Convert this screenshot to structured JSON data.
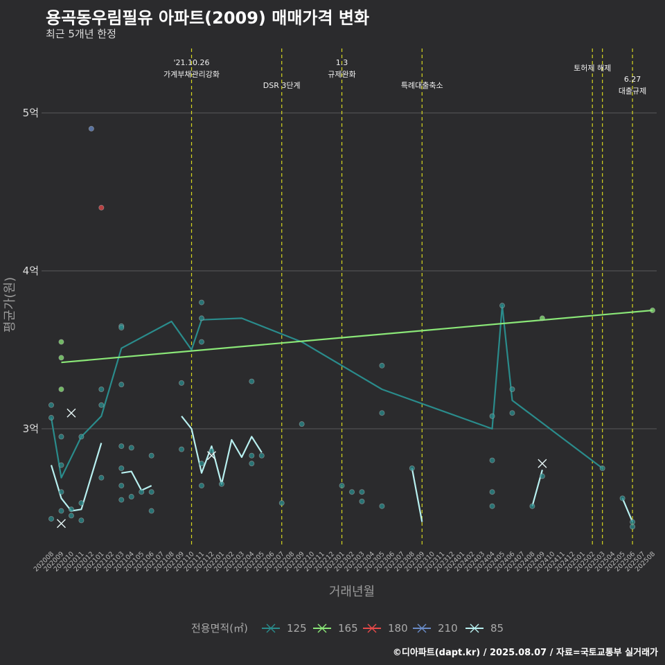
{
  "title": "용곡동우림필유 아파트(2009) 매매가격 변화",
  "subtitle": "최근 5개년 한정",
  "caption": "©디아파트(dapt.kr) / 2025.08.07 / 자료=국토교통부 실거래가",
  "chart_data": {
    "type": "scatter",
    "xlabel": "거래년월",
    "ylabel": "평균가(원)",
    "x_categories": [
      "202008",
      "202009",
      "202010",
      "202011",
      "202012",
      "202101",
      "202102",
      "202103",
      "202104",
      "202105",
      "202106",
      "202107",
      "202108",
      "202109",
      "202110",
      "202111",
      "202112",
      "202201",
      "202202",
      "202203",
      "202204",
      "202205",
      "202206",
      "202207",
      "202208",
      "202209",
      "202210",
      "202211",
      "202212",
      "202301",
      "202302",
      "202303",
      "202304",
      "202305",
      "202306",
      "202307",
      "202308",
      "202309",
      "202310",
      "202311",
      "202312",
      "202401",
      "202402",
      "202403",
      "202404",
      "202405",
      "202406",
      "202407",
      "202408",
      "202409",
      "202410",
      "202411",
      "202412",
      "202501",
      "202502",
      "202503",
      "202504",
      "202505",
      "202506",
      "202507",
      "202508"
    ],
    "y_ticks": [
      {
        "value": 3.0,
        "label": "3억"
      },
      {
        "value": 4.0,
        "label": "4억"
      },
      {
        "value": 5.0,
        "label": "5억"
      }
    ],
    "y_unit": "억원",
    "ylim": [
      2.3,
      5.5
    ],
    "grid": true,
    "legend_title": "전용면적(㎡)",
    "legend_position": "bottom",
    "series": [
      {
        "name": "125",
        "color": "#2a8c8c",
        "points": [
          [
            "202008",
            3.15
          ],
          [
            "202008",
            3.07
          ],
          [
            "202008",
            2.43
          ],
          [
            "202009",
            2.95
          ],
          [
            "202009",
            2.77
          ],
          [
            "202009",
            2.6
          ],
          [
            "202009",
            2.48
          ],
          [
            "202010",
            2.45
          ],
          [
            "202010",
            2.49
          ],
          [
            "202011",
            2.95
          ],
          [
            "202011",
            2.53
          ],
          [
            "202011",
            2.42
          ],
          [
            "202101",
            3.25
          ],
          [
            "202101",
            3.15
          ],
          [
            "202101",
            2.69
          ],
          [
            "202103",
            3.65
          ],
          [
            "202103",
            3.64
          ],
          [
            "202103",
            3.28
          ],
          [
            "202103",
            2.89
          ],
          [
            "202103",
            2.75
          ],
          [
            "202103",
            2.64
          ],
          [
            "202103",
            2.55
          ],
          [
            "202104",
            2.88
          ],
          [
            "202104",
            2.57
          ],
          [
            "202105",
            2.6
          ],
          [
            "202106",
            2.83
          ],
          [
            "202106",
            2.6
          ],
          [
            "202106",
            2.48
          ],
          [
            "202109",
            3.29
          ],
          [
            "202109",
            2.87
          ],
          [
            "202111",
            3.8
          ],
          [
            "202111",
            3.7
          ],
          [
            "202111",
            3.55
          ],
          [
            "202111",
            2.78
          ],
          [
            "202111",
            2.64
          ],
          [
            "202112",
            2.86
          ],
          [
            "202201",
            2.65
          ],
          [
            "202204",
            3.3
          ],
          [
            "202204",
            2.83
          ],
          [
            "202204",
            2.78
          ],
          [
            "202205",
            2.83
          ],
          [
            "202207",
            2.53
          ],
          [
            "202209",
            3.03
          ],
          [
            "202301",
            2.64
          ],
          [
            "202302",
            2.6
          ],
          [
            "202303",
            2.6
          ],
          [
            "202303",
            2.54
          ],
          [
            "202305",
            3.4
          ],
          [
            "202305",
            3.1
          ],
          [
            "202305",
            2.51
          ],
          [
            "202308",
            2.75
          ],
          [
            "202404",
            3.08
          ],
          [
            "202404",
            2.8
          ],
          [
            "202404",
            2.6
          ],
          [
            "202404",
            2.51
          ],
          [
            "202405",
            3.78
          ],
          [
            "202406",
            3.25
          ],
          [
            "202406",
            3.1
          ],
          [
            "202408",
            2.51
          ],
          [
            "202409",
            2.7
          ],
          [
            "202503",
            2.75
          ],
          [
            "202505",
            2.56
          ],
          [
            "202506",
            2.41
          ],
          [
            "202506",
            2.38
          ]
        ],
        "trend": [
          [
            "202008",
            3.07
          ],
          [
            "202009",
            2.69
          ],
          [
            "202011",
            2.95
          ],
          [
            "202101",
            3.08
          ],
          [
            "202103",
            3.51
          ],
          [
            "202108",
            3.68
          ],
          [
            "202110",
            3.5
          ],
          [
            "202111",
            3.69
          ],
          [
            "202203",
            3.7
          ],
          [
            "202209",
            3.55
          ],
          [
            "202305",
            3.25
          ],
          [
            "202404",
            3.0
          ],
          [
            "202405",
            3.78
          ],
          [
            "202406",
            3.18
          ],
          [
            "202503",
            2.75
          ]
        ]
      },
      {
        "name": "165",
        "color": "#8be878",
        "points": [
          [
            "202009",
            3.55
          ],
          [
            "202009",
            3.45
          ],
          [
            "202009",
            3.25
          ],
          [
            "202409",
            3.7
          ],
          [
            "202508",
            3.75
          ]
        ],
        "trend": [
          [
            "202009",
            3.42
          ],
          [
            "202508",
            3.75
          ]
        ]
      },
      {
        "name": "180",
        "color": "#e84a4a",
        "points": [
          [
            "202101",
            4.4
          ]
        ]
      },
      {
        "name": "210",
        "color": "#6a8cc8",
        "points": [
          [
            "202012",
            4.9
          ]
        ]
      },
      {
        "name": "85",
        "color": "#b8f0f0",
        "points": [
          [
            "202009",
            2.4
          ],
          [
            "202010",
            3.1
          ],
          [
            "202112",
            2.83
          ],
          [
            "202409",
            2.78
          ]
        ],
        "trend_segments": [
          [
            [
              "202008",
              2.77
            ],
            [
              "202009",
              2.56
            ],
            [
              "202010",
              2.48
            ],
            [
              "202011",
              2.49
            ],
            [
              "202101",
              2.91
            ]
          ],
          [
            [
              "202103",
              2.72
            ],
            [
              "202104",
              2.73
            ],
            [
              "202105",
              2.61
            ],
            [
              "202106",
              2.64
            ]
          ],
          [
            [
              "202109",
              3.08
            ],
            [
              "202110",
              3.0
            ],
            [
              "202111",
              2.72
            ],
            [
              "202112",
              2.89
            ],
            [
              "202201",
              2.65
            ],
            [
              "202202",
              2.93
            ],
            [
              "202203",
              2.82
            ],
            [
              "202204",
              2.95
            ],
            [
              "202205",
              2.85
            ]
          ],
          [
            [
              "202308",
              2.75
            ],
            [
              "202309",
              2.41
            ]
          ],
          [
            [
              "202408",
              2.51
            ],
            [
              "202409",
              2.74
            ]
          ],
          [
            [
              "202505",
              2.56
            ],
            [
              "202506",
              2.41
            ]
          ]
        ]
      }
    ],
    "annotations": [
      {
        "x": "202110",
        "lines": [
          "'21.10.26",
          "가계부채관리강화"
        ]
      },
      {
        "x": "202207",
        "lines": [
          "DSR 3단계"
        ]
      },
      {
        "x": "202301",
        "lines": [
          "1.3",
          "규제완화"
        ]
      },
      {
        "x": "202309",
        "lines": [
          "특례대출축소"
        ]
      },
      {
        "x": "202502",
        "lines": [
          "토허제 해제"
        ]
      },
      {
        "x": "202503",
        "lines": []
      },
      {
        "x": "202506",
        "lines": [
          "6.27",
          "대출규제"
        ]
      }
    ]
  }
}
